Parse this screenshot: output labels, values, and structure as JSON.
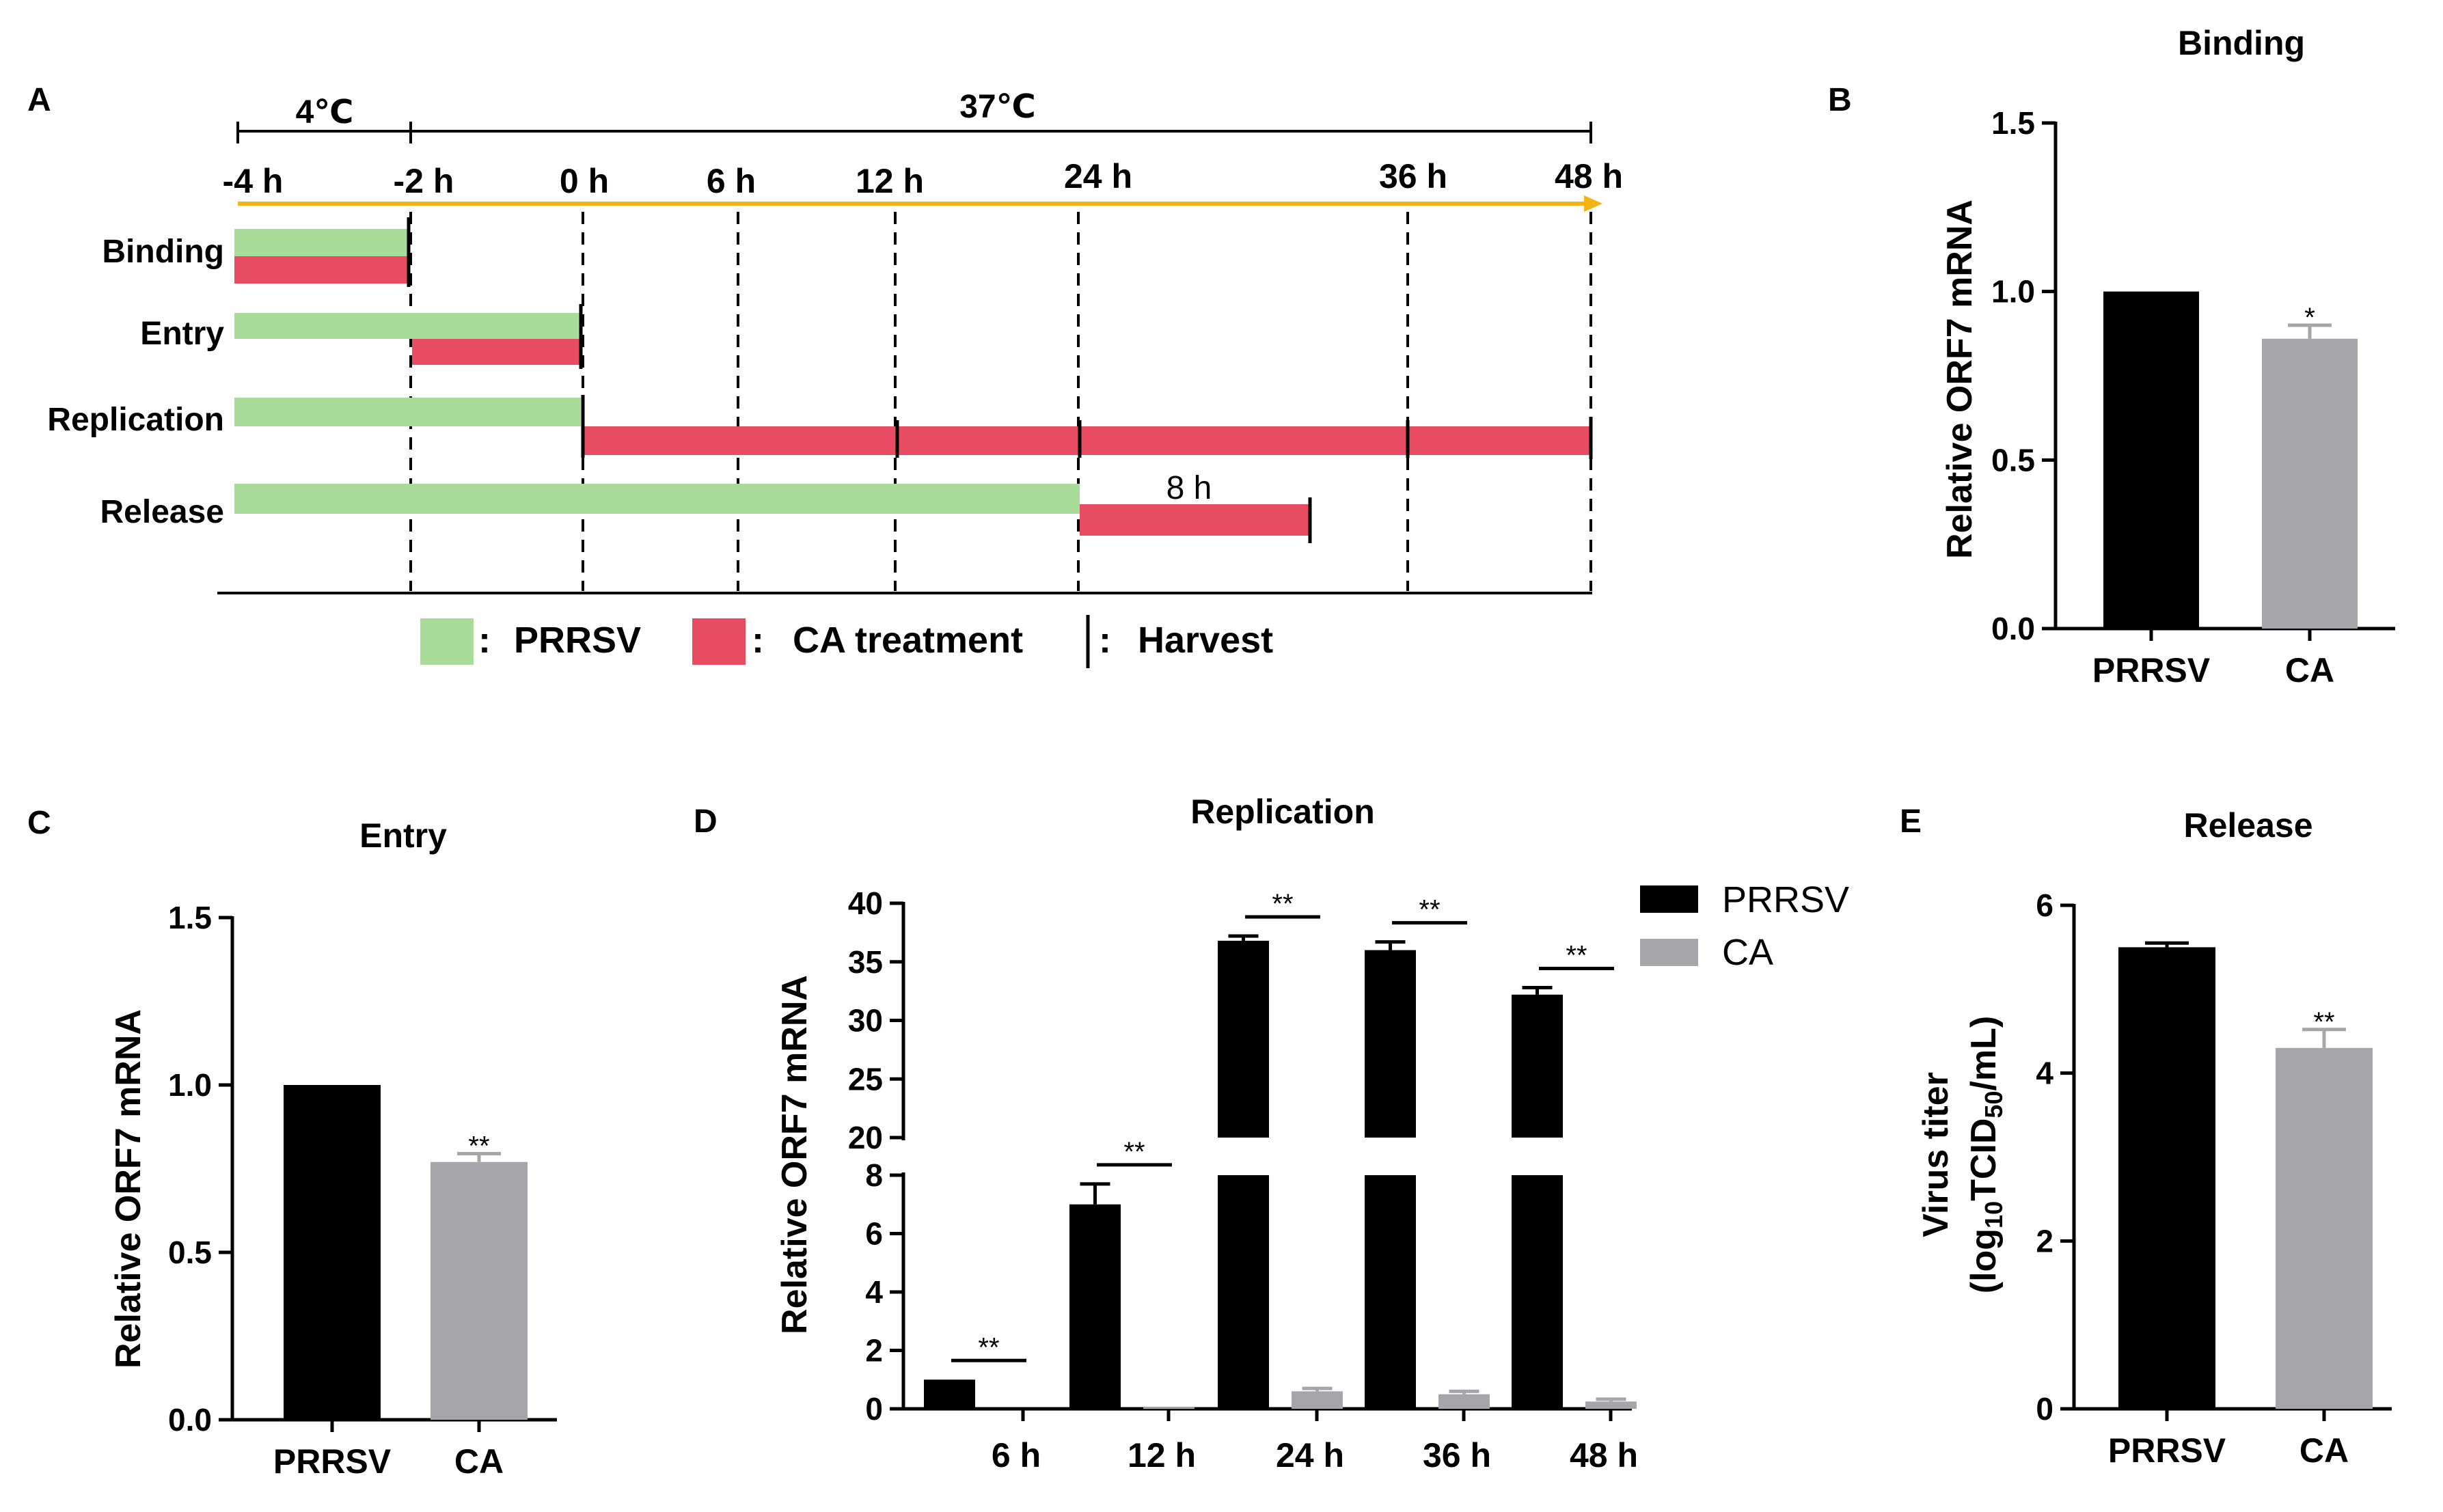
{
  "colors": {
    "prrsv_bar": "#000000",
    "ca_bar": "#a5a5aa",
    "virus_green": "#a9dc99",
    "treatment_red": "#e84c62",
    "timeline_arrow": "#f5b416"
  },
  "panel_a": {
    "letter": "A",
    "temp_cold": "4℃",
    "temp_warm": "37℃",
    "time_points": [
      "-4 h",
      "-2 h",
      "0 h",
      "6 h",
      "12 h",
      "24 h",
      "36 h",
      "48 h"
    ],
    "rows": [
      "Binding",
      "Entry",
      "Replication",
      "Release"
    ],
    "release_duration": "8 h",
    "legend": {
      "virus": "PRRSV",
      "treatment": "CA treatment",
      "harvest": "Harvest",
      "separator": ":"
    }
  },
  "chart_data": [
    {
      "panel": "B",
      "type": "bar",
      "title": "Binding",
      "ylabel": "Relative ORF7 mRNA",
      "categories": [
        "PRRSV",
        "CA"
      ],
      "values": [
        1.0,
        0.86
      ],
      "errors": [
        0,
        0.04
      ],
      "significance": [
        "",
        "*"
      ],
      "ylim": [
        0,
        1.5
      ],
      "yticks": [
        "0.0",
        "0.5",
        "1.0",
        "1.5"
      ]
    },
    {
      "panel": "C",
      "type": "bar",
      "title": "Entry",
      "ylabel": "Relative ORF7 mRNA",
      "categories": [
        "PRRSV",
        "CA"
      ],
      "values": [
        1.0,
        0.77
      ],
      "errors": [
        0,
        0.025
      ],
      "significance": [
        "",
        "**"
      ],
      "ylim": [
        0,
        1.5
      ],
      "yticks": [
        "0.0",
        "0.5",
        "1.0",
        "1.5"
      ]
    },
    {
      "panel": "D",
      "type": "bar",
      "title": "Replication",
      "ylabel": "Relative ORF7 mRNA",
      "categories": [
        "6 h",
        "12 h",
        "24 h",
        "36 h",
        "48 h"
      ],
      "series": [
        {
          "name": "PRRSV",
          "values": [
            1.0,
            7.0,
            36.8,
            36.0,
            32.2
          ],
          "errors": [
            0,
            0.7,
            0.4,
            0.7,
            0.6
          ]
        },
        {
          "name": "CA",
          "values": [
            0.0,
            0.05,
            0.6,
            0.5,
            0.25
          ],
          "errors": [
            0,
            0,
            0.1,
            0.1,
            0.08
          ]
        }
      ],
      "significance": [
        "**",
        "**",
        "**",
        "**",
        "**"
      ],
      "axis_break": {
        "lower": [
          0,
          8
        ],
        "upper": [
          20,
          40
        ]
      },
      "yticks_lower": [
        "0",
        "2",
        "4",
        "6",
        "8"
      ],
      "yticks_upper": [
        "20",
        "25",
        "30",
        "35",
        "40"
      ]
    },
    {
      "panel": "E",
      "type": "bar",
      "title": "Release",
      "ylabel": "Virus titer",
      "ylabel_line2": {
        "prefix": "(log",
        "sub1": "10",
        "middle": "TCID",
        "sub2": "50",
        "suffix": "/mL)"
      },
      "categories": [
        "PRRSV",
        "CA"
      ],
      "values": [
        5.5,
        4.3
      ],
      "errors": [
        0.05,
        0.22
      ],
      "significance": [
        "",
        "**"
      ],
      "ylim": [
        0,
        6
      ],
      "yticks": [
        "0",
        "2",
        "4",
        "6"
      ]
    }
  ]
}
